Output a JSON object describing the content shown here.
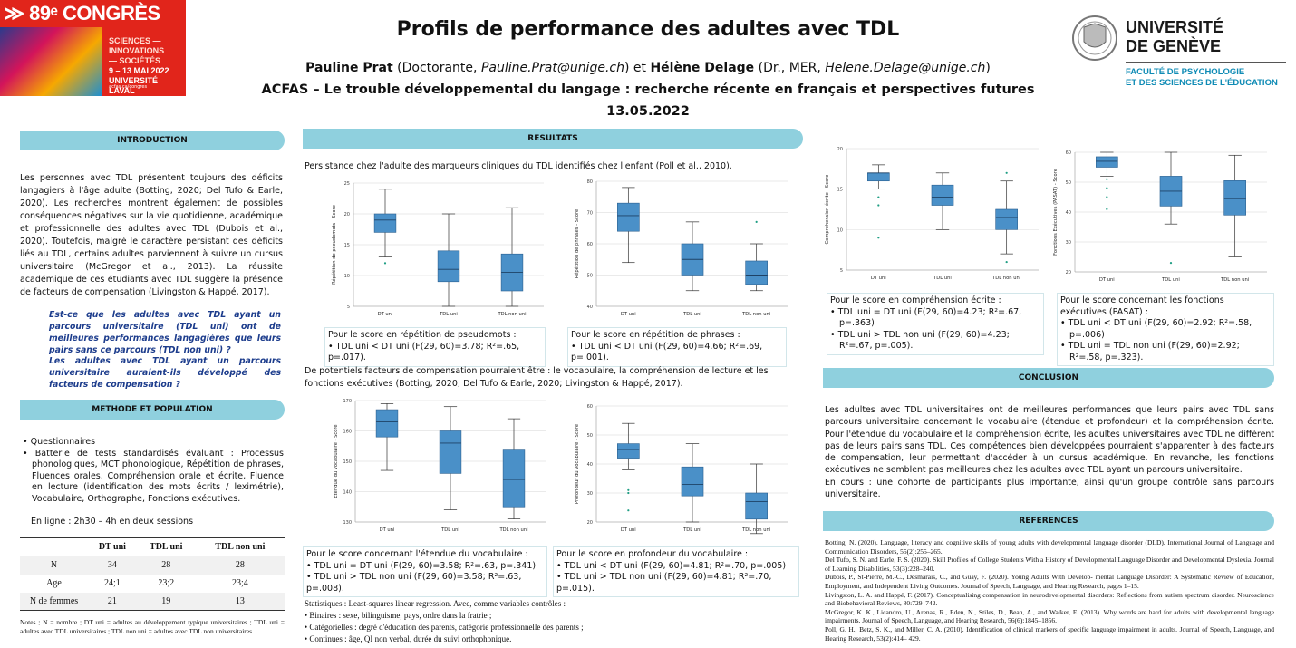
{
  "header": {
    "logo_top": "≫ 89ᵉ CONGRÈS",
    "logo_lines": [
      "SCIENCES —",
      "INNOVATIONS",
      "— SOCIÉTÉS",
      "9 – 13 MAI 2022",
      "UNIVERSITÉ LAVAL"
    ],
    "logo_url": "acfas.ca/congres",
    "title": "Profils de performance des adultes avec TDL",
    "author1": "Pauline Prat",
    "author1_role": " (Doctorante, ",
    "author1_email": "Pauline.Prat@unige.ch",
    "join": ") et ",
    "author2": "Hélène Delage",
    "author2_role": " (Dr., MER, ",
    "author2_email": "Helene.Delage@unige.ch",
    "end": ")",
    "subtitle": "ACFAS – Le trouble développemental du langage : recherche récente en français et perspectives futures",
    "date": "13.05.2022",
    "uni_name": [
      "UNIVERSITÉ",
      "DE GENÈVE"
    ],
    "uni_fac": [
      "FACULTÉ DE PSYCHOLOGIE",
      "ET DES SCIENCES DE L'ÉDUCATION"
    ]
  },
  "intro": {
    "heading": "INTRODUCTION",
    "text": "Les personnes avec TDL présentent toujours des déficits langagiers à l'âge adulte (Botting, 2020; Del Tufo & Earle, 2020). Les recherches montrent également de possibles conséquences négatives sur la vie quotidienne, académique et professionnelle des adultes avec TDL (Dubois et al., 2020). Toutefois, malgré le caractère persistant des déficits liés au TDL, certains adultes parviennent à suivre un cursus universitaire (McGregor et al., 2013). La réussite académique de ces étudiants avec TDL suggère la présence de facteurs de compensation (Livingston & Happé, 2017).",
    "q1": "Est-ce que les adultes avec TDL ayant un parcours universitaire (TDL uni) ont de meilleures performances langagières que leurs pairs sans ce parcours (TDL non uni) ?",
    "q2": "Les adultes avec TDL ayant un parcours universitaire auraient-ils développé des facteurs de compensation ?"
  },
  "method": {
    "heading": "METHODE ET POPULATION",
    "bullets": [
      "Questionnaires",
      "Batterie de tests standardisés évaluant : Processus phonologiques, MCT phonologique, Répétition de phrases, Fluences orales, Compréhension orale et écrite, Fluence en lecture (identification des mots écrits / leximétrie), Vocabulaire, Orthographe, Fonctions exécutives."
    ],
    "online": "En ligne : 2h30 – 4h en deux sessions",
    "table": {
      "headers": [
        "",
        "DT uni",
        "TDL uni",
        "TDL non uni"
      ],
      "rows": [
        [
          "N",
          "34",
          "28",
          "28"
        ],
        [
          "Age",
          "24;1",
          "23;2",
          "23;4"
        ],
        [
          "N de femmes",
          "21",
          "19",
          "13"
        ]
      ]
    },
    "notes": "Notes ; N = nombre ; DT uni = adultes au développement typique universitaires ; TDL uni = adultes avec TDL universitaires ; TDL non uni = adultes avec TDL non universitaires."
  },
  "results": {
    "heading": "RESULTATS",
    "intro1": "Persistance chez l'adulte des marqueurs cliniques du TDL identifiés chez l'enfant (Poll et al., 2010).",
    "intro2": "De potentiels facteurs de compensation pourraient être : le vocabulaire, la compréhension de lecture et les fonctions exécutives (Botting, 2020; Del Tufo & Earle, 2020; Livingston & Happé, 2017).",
    "captions": {
      "pseudo": {
        "title": "Pour le score en répétition de pseudomots :",
        "lines": [
          "TDL uni < DT uni (F(29, 60)=3.78; R²=.65, p=.017)."
        ]
      },
      "phrases": {
        "title": "Pour le score en répétition de phrases :",
        "lines": [
          "TDL uni < DT uni (F(29, 60)=4.66; R²=.69, p=.001)."
        ]
      },
      "etendue": {
        "title": "Pour le score concernant l'étendue du vocabulaire :",
        "lines": [
          "TDL uni = DT uni (F(29, 60)=3.58; R²=.63, p=.341)",
          "TDL uni > TDL non uni (F(29, 60)=3.58; R²=.63, p=.008)."
        ]
      },
      "profondeur": {
        "title": "Pour le score en profondeur du vocabulaire :",
        "lines": [
          "TDL uni < DT uni (F(29, 60)=4.81; R²=.70, p=.005)",
          "TDL uni > TDL non uni (F(29, 60)=4.81; R²=.70, p=.015)."
        ]
      },
      "compr": {
        "title": "Pour le score en compréhension écrite :",
        "lines": [
          "TDL uni = DT uni (F(29, 60)=4.23; R²=.67, p=.363)",
          "TDL uni > TDL non uni (F(29, 60)=4.23; R²=.67, p=.005)."
        ]
      },
      "fe": {
        "title": "Pour le score concernant les fonctions exécutives (PASAT) :",
        "lines": [
          "TDL uni < DT uni (F(29, 60)=2.92; R²=.58, p=.006)",
          "TDL uni = TDL non uni (F(29, 60)=2.92; R²=.58, p=.323)."
        ]
      }
    },
    "stats_title": "Statistiques : Least-squares linear regression. Avec, comme variables contrôles :",
    "stats": [
      "Binaires : sexe, bilinguisme, pays, ordre dans la fratrie ;",
      "Catégorielles : degré d'éducation des parents, catégorie professionnelle des parents ;",
      "Continues : âge, QI non verbal, durée du suivi orthophonique."
    ]
  },
  "conclusion": {
    "heading": "CONCLUSION",
    "text": "Les adultes avec TDL universitaires ont de meilleures performances que leurs pairs avec TDL sans parcours universitaire concernant le vocabulaire (étendue et profondeur) et la compréhension écrite. Pour l'étendue du vocabulaire et la compréhension écrite, les adultes universitaires avec TDL ne diffèrent pas de leurs pairs sans TDL. Ces compétences bien développées pourraient s'apparenter à des facteurs de compensation, leur permettant d'accéder à un cursus académique. En revanche, les fonctions exécutives ne semblent pas meilleures chez les adultes avec TDL ayant un parcours universitaire.",
    "text2": "En cours : une cohorte de participants plus importante, ainsi qu'un groupe contrôle sans parcours universitaire."
  },
  "references": {
    "heading": "REFERENCES",
    "items": [
      "Botting, N. (2020). Language, literacy and cognitive skills of young adults with developmental language disorder (DLD). International Journal of Language and Communication Disorders, 55(2):255–265.",
      "Del Tufo, S. N. and Earle, F. S. (2020). Skill Profiles of College Students With a History of Developmental Language Disorder and Developmental Dyslexia. Journal of Learning Disabilities, 53(3):228–240.",
      "Dubois, P., St-Pierre, M.-C., Desmarais, C., and Guay, F. (2020). Young Adults With Develop- mental Language Disorder: A Systematic Review of Education, Employment, and Independent Living Outcomes. Journal of Speech, Language, and Hearing Research, pages 1–15.",
      "Livingston, L. A. and Happé, F. (2017). Conceptualising compensation in neurodevelopmental disorders: Reflections from autism spectrum disorder. Neuroscience and Biobehavioral Reviews, 80:729–742.",
      "McGregor, K. K., Licandro, U., Arenas, R., Eden, N., Stiles, D., Bean, A., and Walker, E. (2013). Why words are hard for adults with developmental language impairments. Journal of Speech, Language, and Hearing Research, 56(6):1845–1856.",
      "Poll, G. H., Betz, S. K., and Miller, C. A. (2010). Identification of clinical markers of specific language impairment in adults. Journal of Speech, Language, and Hearing Research, 53(2):414– 429."
    ]
  },
  "chart_data": [
    {
      "id": "pseudo",
      "type": "box",
      "ylabel": "Répétition de pseudomots - Score",
      "categories": [
        "DT uni",
        "TDL uni",
        "TDL non uni"
      ],
      "ylim": [
        5,
        25
      ],
      "yticks": [
        5,
        10,
        15,
        20,
        25
      ],
      "boxes": [
        {
          "lo": 13,
          "q1": 17,
          "med": 19,
          "q3": 20,
          "hi": 24,
          "out": [
            12
          ]
        },
        {
          "lo": 5,
          "q1": 9,
          "med": 11,
          "q3": 14,
          "hi": 20,
          "out": []
        },
        {
          "lo": 5,
          "q1": 7.5,
          "med": 10.5,
          "q3": 13.5,
          "hi": 21,
          "out": []
        }
      ]
    },
    {
      "id": "phrases",
      "type": "box",
      "ylabel": "Répétition de phrases - Score",
      "categories": [
        "DT uni",
        "TDL uni",
        "TDL non uni"
      ],
      "ylim": [
        40,
        80
      ],
      "yticks": [
        40,
        50,
        60,
        70,
        80
      ],
      "boxes": [
        {
          "lo": 54,
          "q1": 64,
          "med": 69,
          "q3": 73,
          "hi": 78,
          "out": []
        },
        {
          "lo": 45,
          "q1": 50,
          "med": 55,
          "q3": 60,
          "hi": 67,
          "out": []
        },
        {
          "lo": 45,
          "q1": 47,
          "med": 50,
          "q3": 54.5,
          "hi": 60,
          "out": [
            67
          ]
        }
      ]
    },
    {
      "id": "compr",
      "type": "box",
      "ylabel": "Compréhension écrite - Score",
      "categories": [
        "DT uni",
        "TDL uni",
        "TDL non uni"
      ],
      "ylim": [
        5,
        20
      ],
      "yticks": [
        5,
        10,
        15,
        20
      ],
      "boxes": [
        {
          "lo": 15,
          "q1": 16,
          "med": 17,
          "q3": 17,
          "hi": 18,
          "out": [
            14,
            13,
            9
          ]
        },
        {
          "lo": 10,
          "q1": 13,
          "med": 14,
          "q3": 15.5,
          "hi": 17,
          "out": []
        },
        {
          "lo": 7,
          "q1": 10,
          "med": 11.5,
          "q3": 12.5,
          "hi": 16,
          "out": [
            17,
            6
          ]
        }
      ]
    },
    {
      "id": "fe",
      "type": "box",
      "ylabel": "Fonctions Exécutives (PASAT) - Score",
      "categories": [
        "DT uni",
        "TDL uni",
        "TDL non uni"
      ],
      "ylim": [
        20,
        60
      ],
      "yticks": [
        20,
        30,
        40,
        50,
        60
      ],
      "boxes": [
        {
          "lo": 52,
          "q1": 55,
          "med": 57,
          "q3": 58.5,
          "hi": 60,
          "out": [
            51,
            48,
            45,
            41
          ]
        },
        {
          "lo": 36,
          "q1": 42,
          "med": 47,
          "q3": 52,
          "hi": 60,
          "out": [
            23
          ]
        },
        {
          "lo": 25,
          "q1": 39,
          "med": 44.5,
          "q3": 50.5,
          "hi": 59,
          "out": []
        }
      ]
    },
    {
      "id": "etendue",
      "type": "box",
      "ylabel": "Etendue du vocabulaire - Score",
      "categories": [
        "DT uni",
        "TDL uni",
        "TDL non uni"
      ],
      "ylim": [
        130,
        170
      ],
      "yticks": [
        130,
        140,
        150,
        160,
        170
      ],
      "boxes": [
        {
          "lo": 147,
          "q1": 158,
          "med": 163,
          "q3": 167,
          "hi": 169,
          "out": []
        },
        {
          "lo": 134,
          "q1": 146,
          "med": 156,
          "q3": 160,
          "hi": 168,
          "out": []
        },
        {
          "lo": 131,
          "q1": 135,
          "med": 144,
          "q3": 154,
          "hi": 164,
          "out": []
        }
      ]
    },
    {
      "id": "profondeur",
      "type": "box",
      "ylabel": "Profondeur du vocabulaire - Score",
      "categories": [
        "DT uni",
        "TDL uni",
        "TDL non uni"
      ],
      "ylim": [
        20,
        60
      ],
      "yticks": [
        20,
        30,
        40,
        50,
        60
      ],
      "boxes": [
        {
          "lo": 38,
          "q1": 42,
          "med": 45,
          "q3": 47,
          "hi": 54,
          "out": [
            31,
            30,
            24
          ]
        },
        {
          "lo": 20,
          "q1": 29,
          "med": 33,
          "q3": 39,
          "hi": 47,
          "out": []
        },
        {
          "lo": 16,
          "q1": 21,
          "med": 27,
          "q3": 30,
          "hi": 40,
          "out": []
        }
      ]
    }
  ],
  "colors": {
    "box": "#4a90c8",
    "bar": "#8fd0de",
    "question": "#1c3c8c",
    "unige": "#0f8bb5",
    "logo_red": "#e1251b"
  }
}
